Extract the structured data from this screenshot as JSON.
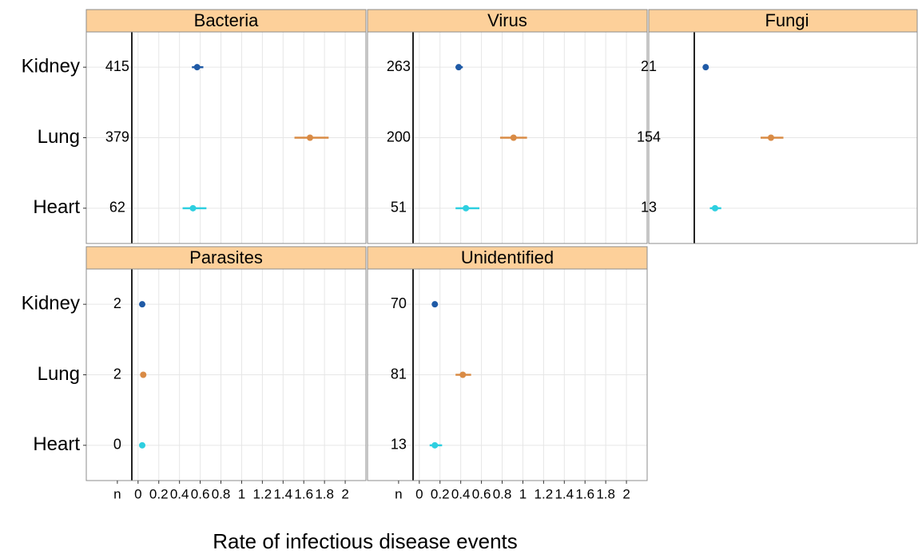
{
  "xlabel": "Rate of infectious disease events",
  "chart_data": [
    {
      "type": "forest",
      "title": "Bacteria",
      "categories": [
        "Kidney",
        "Lung",
        "Heart"
      ],
      "n": [
        415,
        379,
        62
      ],
      "values": [
        0.57,
        1.66,
        0.53
      ],
      "low": [
        0.52,
        1.51,
        0.43
      ],
      "high": [
        0.63,
        1.84,
        0.66
      ],
      "colors": [
        "#1f5aa6",
        "#d98b45",
        "#2ecfe0"
      ],
      "xlim": [
        -0.5,
        2.2
      ]
    },
    {
      "type": "forest",
      "title": "Virus",
      "n": [
        263,
        200,
        51
      ],
      "values": [
        0.38,
        0.91,
        0.45
      ],
      "low": [
        0.35,
        0.78,
        0.35
      ],
      "high": [
        0.42,
        1.04,
        0.58
      ],
      "colors": [
        "#1f5aa6",
        "#d98b45",
        "#2ecfe0"
      ],
      "xlim": [
        -0.5,
        2.2
      ]
    },
    {
      "type": "forest",
      "title": "Fungi",
      "n": [
        21,
        154,
        13
      ],
      "values": [
        0.05,
        0.68,
        0.14
      ],
      "low": [
        0.03,
        0.58,
        0.09
      ],
      "high": [
        0.07,
        0.8,
        0.2
      ],
      "colors": [
        "#1f5aa6",
        "#d98b45",
        "#2ecfe0"
      ],
      "xlim": [
        -0.5,
        2.2
      ]
    },
    {
      "type": "forest",
      "title": "Parasites",
      "categories": [
        "Kidney",
        "Lung",
        "Heart"
      ],
      "n": [
        2,
        2,
        0
      ],
      "values": [
        0.04,
        0.05,
        0.04
      ],
      "low": [
        0.03,
        0.04,
        0.03
      ],
      "high": [
        0.05,
        0.06,
        0.05
      ],
      "colors": [
        "#1f5aa6",
        "#d98b45",
        "#2ecfe0"
      ],
      "xlim": [
        -0.5,
        2.2
      ],
      "xticks": [
        {
          "value": -0.2,
          "label": "n"
        },
        0,
        0.2,
        0.4,
        0.6,
        0.8,
        1,
        1.2,
        1.4,
        1.6,
        1.8,
        2
      ]
    },
    {
      "type": "forest",
      "title": "Unidentified",
      "n": [
        70,
        81,
        13
      ],
      "values": [
        0.15,
        0.42,
        0.15
      ],
      "low": [
        0.13,
        0.35,
        0.1
      ],
      "high": [
        0.17,
        0.5,
        0.22
      ],
      "colors": [
        "#1f5aa6",
        "#d98b45",
        "#2ecfe0"
      ],
      "xlim": [
        -0.5,
        2.2
      ],
      "xticks": [
        {
          "value": -0.2,
          "label": "n"
        },
        0,
        0.2,
        0.4,
        0.6,
        0.8,
        1,
        1.2,
        1.4,
        1.6,
        1.8,
        2
      ]
    }
  ]
}
